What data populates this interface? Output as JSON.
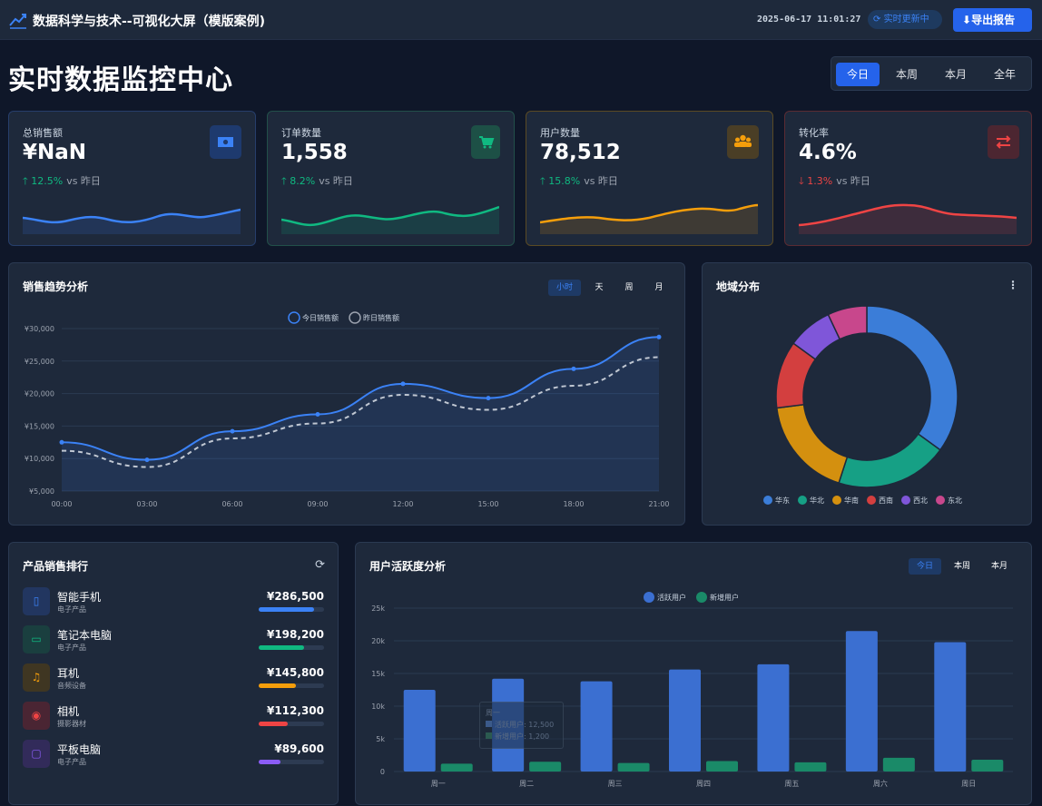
{
  "header": {
    "app_title": "数据科学与技术--可视化大屏（模版案例)",
    "datetime": "2025-06-17 11:01:27",
    "live_status": "实时更新中",
    "export_label": "导出报告"
  },
  "page": {
    "title": "实时数据监控中心",
    "range_tabs": [
      "今日",
      "本周",
      "本月",
      "全年"
    ],
    "active_range": "今日"
  },
  "kpis": [
    {
      "label": "总销售额",
      "value": "¥NaN",
      "change": "12.5%",
      "direction": "up",
      "vs": "vs 昨日",
      "icon": "cash-icon",
      "color": "#3b82f6"
    },
    {
      "label": "订单数量",
      "value": "1,558",
      "change": "8.2%",
      "direction": "up",
      "vs": "vs 昨日",
      "icon": "cart-icon",
      "color": "#10b981"
    },
    {
      "label": "用户数量",
      "value": "78,512",
      "change": "15.8%",
      "direction": "up",
      "vs": "vs 昨日",
      "icon": "users-icon",
      "color": "#f59e0b"
    },
    {
      "label": "转化率",
      "value": "4.6%",
      "change": "1.3%",
      "direction": "down",
      "vs": "vs 昨日",
      "icon": "exchange-icon",
      "color": "#ef4444"
    }
  ],
  "sales_trend": {
    "title": "销售趋势分析",
    "tabs": [
      "小时",
      "天",
      "周",
      "月"
    ],
    "active_tab": "小时"
  },
  "region": {
    "title": "地域分布"
  },
  "ranking": {
    "title": "产品销售排行",
    "items": [
      {
        "name": "智能手机",
        "category": "电子产品",
        "amount": "¥286,500",
        "share": 0.85,
        "color": "#3b82f6",
        "icon": "phone-icon"
      },
      {
        "name": "笔记本电脑",
        "category": "电子产品",
        "amount": "¥198,200",
        "share": 0.7,
        "color": "#10b981",
        "icon": "laptop-icon"
      },
      {
        "name": "耳机",
        "category": "音频设备",
        "amount": "¥145,800",
        "share": 0.57,
        "color": "#f59e0b",
        "icon": "headphones-icon"
      },
      {
        "name": "相机",
        "category": "摄影器材",
        "amount": "¥112,300",
        "share": 0.45,
        "color": "#ef4444",
        "icon": "camera-icon"
      },
      {
        "name": "平板电脑",
        "category": "电子产品",
        "amount": "¥89,600",
        "share": 0.33,
        "color": "#8b5cf6",
        "icon": "tablet-icon"
      }
    ]
  },
  "activity": {
    "title": "用户活跃度分析",
    "tabs": [
      "今日",
      "本周",
      "本月"
    ],
    "active_tab": "今日",
    "tooltip": {
      "day": "周一",
      "active": "活跃用户: 12,500",
      "new": "新增用户: 1,200"
    }
  },
  "chart_data": [
    {
      "type": "line",
      "title": "销售趋势分析",
      "x": [
        "00:00",
        "03:00",
        "06:00",
        "09:00",
        "12:00",
        "15:00",
        "18:00",
        "21:00"
      ],
      "series": [
        {
          "name": "今日销售额",
          "values": [
            12500,
            9800,
            14200,
            16800,
            21500,
            19300,
            23800,
            28700
          ],
          "color": "#3b82f6"
        },
        {
          "name": "昨日销售额",
          "values": [
            11200,
            8700,
            13100,
            15400,
            19800,
            17500,
            21200,
            25600
          ],
          "color": "#9ca3af"
        }
      ],
      "yticks": [
        "¥5,000",
        "¥10,000",
        "¥15,000",
        "¥20,000",
        "¥25,000",
        "¥30,000"
      ],
      "ylim": [
        5000,
        30000
      ]
    },
    {
      "type": "pie",
      "title": "地域分布",
      "labels": [
        "华东",
        "华北",
        "华南",
        "西南",
        "西北",
        "东北"
      ],
      "values": [
        35,
        20,
        18,
        12,
        8,
        7
      ],
      "colors": [
        "#3b7dd8",
        "#16a085",
        "#d4900f",
        "#d33f3f",
        "#7f56d9",
        "#c8478c"
      ]
    },
    {
      "type": "bar",
      "title": "用户活跃度分析",
      "categories": [
        "周一",
        "周二",
        "周三",
        "周四",
        "周五",
        "周六",
        "周日"
      ],
      "series": [
        {
          "name": "活跃用户",
          "values": [
            12500,
            14200,
            13800,
            15600,
            16400,
            21500,
            19800
          ],
          "color": "#3b6fd1"
        },
        {
          "name": "新增用户",
          "values": [
            1200,
            1500,
            1300,
            1600,
            1400,
            2100,
            1800
          ],
          "color": "#1a8a68"
        }
      ],
      "yticks": [
        "0",
        "5k",
        "10k",
        "15k",
        "20k",
        "25k"
      ],
      "ylim": [
        0,
        25000
      ]
    }
  ]
}
